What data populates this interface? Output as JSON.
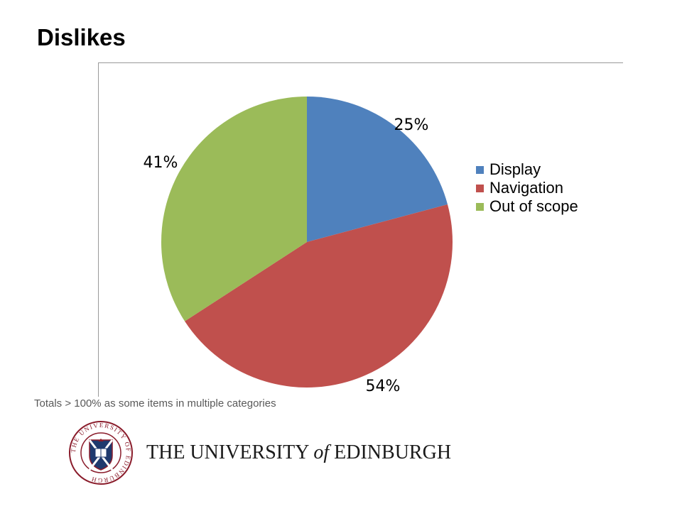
{
  "title": "Dislikes",
  "footnote": "Totals > 100% as some items in multiple categories",
  "logo": {
    "crest_text": "THE UNIVERSITY OF EDINBURGH",
    "wordmark_pre": "THE UNIVERSITY",
    "wordmark_of": "of",
    "wordmark_post": "EDINBURGH"
  },
  "chart_data": {
    "type": "pie",
    "categories": [
      "Display",
      "Navigation",
      "Out of scope"
    ],
    "values": [
      25,
      54,
      41
    ],
    "labels": [
      "25%",
      "54%",
      "41%"
    ],
    "colors": [
      "#4F81BD",
      "#C0504D",
      "#9BBB59"
    ],
    "legend_position": "right",
    "start_angle": "12 o'clock",
    "direction": "clockwise"
  }
}
